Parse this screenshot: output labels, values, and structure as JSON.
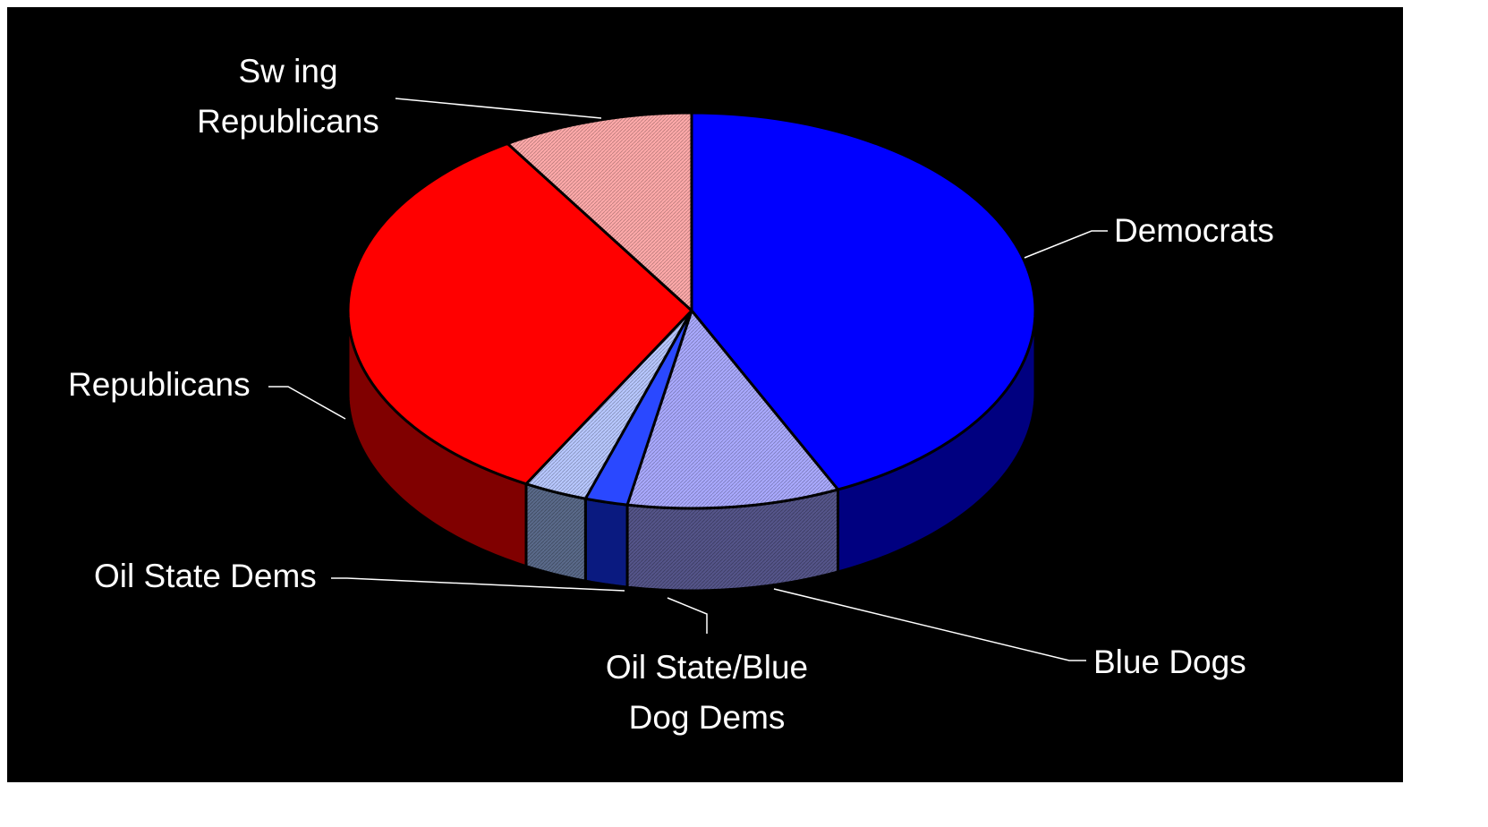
{
  "chart_data": {
    "type": "pie",
    "title": "",
    "three_d": true,
    "background": "#000000",
    "slices": [
      {
        "label": "Democrats",
        "value": 43,
        "color": "#0000ff",
        "side_color": "#000080",
        "hatched": false
      },
      {
        "label": "Blue Dogs",
        "value": 10,
        "color": "#aaaaff",
        "side_color": "#55558a",
        "hatched": true
      },
      {
        "label": "Oil State/Blue Dog Dems",
        "value": 2,
        "color": "#2a48ff",
        "side_color": "#0a1a80",
        "hatched": false
      },
      {
        "label": "Oil State Dems",
        "value": 3,
        "color": "#b8c8ff",
        "side_color": "#5a6a8a",
        "hatched": true
      },
      {
        "label": "Republicans",
        "value": 33,
        "color": "#ff0000",
        "side_color": "#800000",
        "hatched": false
      },
      {
        "label": "Swing Republicans",
        "value": 9,
        "color": "#ffaaaa",
        "side_color": "#805555",
        "hatched": true
      }
    ],
    "labels_display": [
      {
        "slice": "Democrats",
        "lines": [
          "Democrats"
        ]
      },
      {
        "slice": "Blue Dogs",
        "lines": [
          "Blue Dogs"
        ]
      },
      {
        "slice": "Oil State/Blue Dog Dems",
        "lines": [
          "Oil State/Blue",
          "Dog Dems"
        ]
      },
      {
        "slice": "Oil State Dems",
        "lines": [
          "Oil State Dems"
        ]
      },
      {
        "slice": "Republicans",
        "lines": [
          "Republicans"
        ]
      },
      {
        "slice": "Swing Republicans",
        "lines": [
          "Sw ing",
          "Republicans"
        ]
      }
    ],
    "legend": "none",
    "grid": false
  }
}
